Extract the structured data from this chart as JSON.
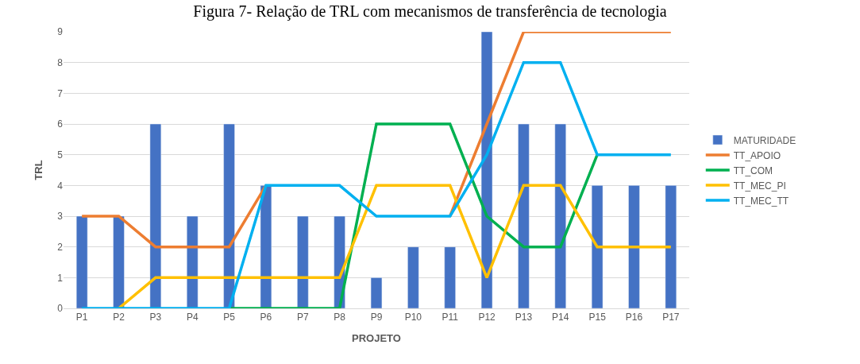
{
  "chart_data": {
    "type": "bar",
    "title": "Figura 7- Relação de TRL com mecanismos de transferência de tecnologia",
    "xlabel": "PROJETO",
    "ylabel": "TRL",
    "categories": [
      "P1",
      "P2",
      "P3",
      "P4",
      "P5",
      "P6",
      "P7",
      "P8",
      "P9",
      "P10",
      "P11",
      "P12",
      "P13",
      "P14",
      "P15",
      "P16",
      "P17"
    ],
    "series": [
      {
        "name": "MATURIDADE",
        "color": "#4472c4",
        "values": [
          3,
          3,
          6,
          3,
          6,
          4,
          3,
          3,
          1,
          2,
          2,
          9,
          6,
          6,
          4,
          4,
          4
        ]
      },
      {
        "name": "TT_APOIO",
        "type": "line",
        "color": "#ed7d31",
        "values": [
          3,
          3,
          2,
          2,
          2,
          4,
          null,
          null,
          null,
          null,
          3,
          6,
          9,
          9,
          9,
          9,
          9
        ]
      },
      {
        "name": "TT_COM",
        "type": "line",
        "color": "#00b050",
        "values": [
          null,
          null,
          null,
          null,
          0,
          0,
          0,
          0,
          6,
          6,
          6,
          3,
          2,
          2,
          5,
          null,
          null
        ]
      },
      {
        "name": "TT_MEC_PI",
        "type": "line",
        "color": "#ffc000",
        "values": [
          null,
          0,
          1,
          1,
          1,
          1,
          1,
          1,
          4,
          4,
          4,
          1,
          4,
          4,
          2,
          2,
          2
        ]
      },
      {
        "name": "TT_MEC_TT",
        "type": "line",
        "color": "#00b0f0",
        "values": [
          0,
          0,
          0,
          0,
          0,
          4,
          4,
          4,
          3,
          3,
          3,
          5,
          8,
          8,
          5,
          5,
          5
        ]
      }
    ],
    "ylim": [
      0,
      9
    ],
    "yticks": [
      0,
      1,
      2,
      3,
      4,
      5,
      6,
      7,
      8,
      9
    ],
    "grid": "y",
    "legend": "right",
    "marker": "none",
    "line_style": "solid"
  }
}
